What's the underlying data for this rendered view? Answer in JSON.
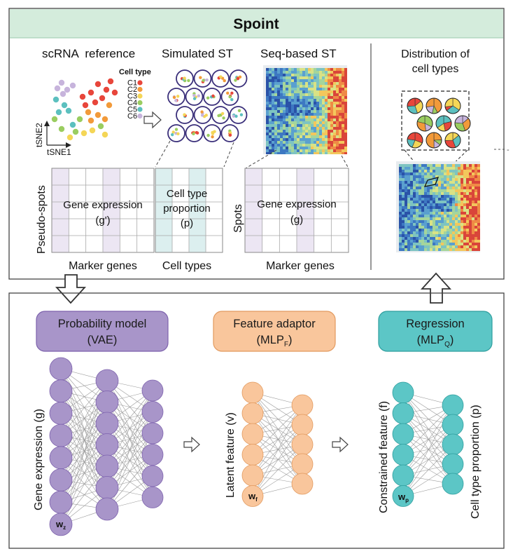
{
  "colors": {
    "header_fill": "#d4ecdc",
    "purple": "#a895c9",
    "purple_dark": "#7d62ad",
    "peach": "#f9c69c",
    "peach_dark": "#e29a5f",
    "teal": "#5cc6c6",
    "teal_dark": "#2f9e9e",
    "c1": "#e8463b",
    "c2": "#f29a3a",
    "c3": "#f4d657",
    "c4": "#9acd60",
    "c5": "#5cc0bf",
    "c6": "#c7b4dc",
    "grid_line": "#8a8a8a",
    "panel_border": "#444444"
  },
  "top_panel": {
    "title": "Spoint",
    "scrna_label": "scRNA  reference",
    "simulated_label": "Simulated ST",
    "seq_label": "Seq-based ST",
    "distribution_label_1": "Distribution of",
    "distribution_label_2": "cell types",
    "legend_title": "Cell type",
    "legend_items": [
      "C1",
      "C2",
      "C3",
      "C4",
      "C5",
      "C6"
    ],
    "tsne_x": "tSNE1",
    "tsne_y": "tSNE2",
    "pseudo_spots_label": "Pseudo-spots",
    "gene_expr_pseudo_1": "Gene expression",
    "gene_expr_pseudo_2": "(g')",
    "cell_type_prop_1": "Cell type",
    "cell_type_prop_2": "proportion",
    "cell_type_prop_3": "(p)",
    "spots_label": "Spots",
    "gene_expr_spots_1": "Gene expression",
    "gene_expr_spots_2": "(g)",
    "marker_genes_1": "Marker genes",
    "cell_types": "Cell types",
    "marker_genes_2": "Marker genes"
  },
  "bottom_panel": {
    "vae_title": "Probability model",
    "vae_sub": "(VAE)",
    "adaptor_title": "Feature adaptor",
    "adaptor_sub": "(MLP",
    "adaptor_sub_idx": "F",
    "regression_title": "Regression",
    "regression_sub": "(MLP",
    "regression_sub_idx": "Q",
    "gene_expr_label": "Gene expression (g)",
    "latent_label": "Latent feature (v)",
    "constrained_label": "Constrained feature (f)",
    "cell_prop_label": "Cell type proportion (p)",
    "wz": "w",
    "wz_idx": "z",
    "wf": "w",
    "wf_idx": "f",
    "wp": "w",
    "wp_idx": "p"
  }
}
